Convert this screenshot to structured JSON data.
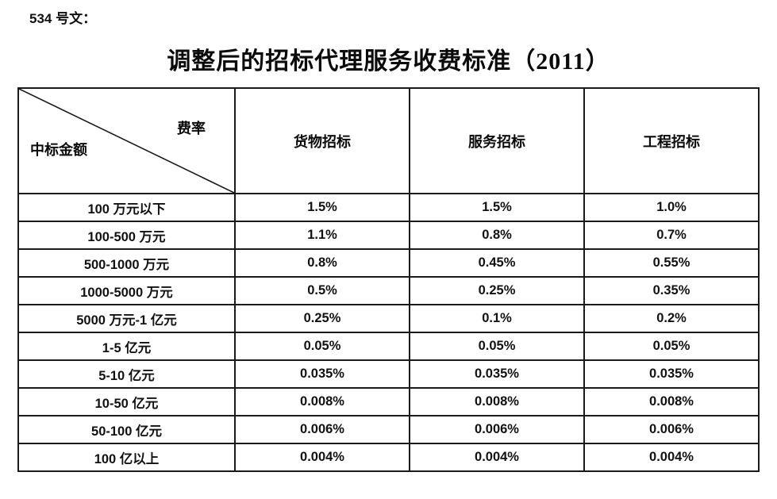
{
  "document": {
    "doc_label": "534 号文：",
    "title": "调整后的招标代理服务收费标准（2011）"
  },
  "table": {
    "corner": {
      "top_right_label": "费率",
      "bottom_left_label": "中标金额"
    },
    "columns": [
      "货物招标",
      "服务招标",
      "工程招标"
    ],
    "rows": [
      {
        "label": "100 万元以下",
        "values": [
          "1.5%",
          "1.5%",
          "1.0%"
        ]
      },
      {
        "label": "100-500 万元",
        "values": [
          "1.1%",
          "0.8%",
          "0.7%"
        ]
      },
      {
        "label": "500-1000 万元",
        "values": [
          "0.8%",
          "0.45%",
          "0.55%"
        ]
      },
      {
        "label": "1000-5000 万元",
        "values": [
          "0.5%",
          "0.25%",
          "0.35%"
        ]
      },
      {
        "label": "5000 万元-1 亿元",
        "values": [
          "0.25%",
          "0.1%",
          "0.2%"
        ]
      },
      {
        "label": "1-5 亿元",
        "values": [
          "0.05%",
          "0.05%",
          "0.05%"
        ]
      },
      {
        "label": "5-10 亿元",
        "values": [
          "0.035%",
          "0.035%",
          "0.035%"
        ]
      },
      {
        "label": "10-50 亿元",
        "values": [
          "0.008%",
          "0.008%",
          "0.008%"
        ]
      },
      {
        "label": "50-100 亿元",
        "values": [
          "0.006%",
          "0.006%",
          "0.006%"
        ]
      },
      {
        "label": "100 亿以上",
        "values": [
          "0.004%",
          "0.004%",
          "0.004%"
        ]
      }
    ]
  },
  "colors": {
    "text": "#111111",
    "border": "#1a1a1a",
    "background": "#ffffff"
  }
}
